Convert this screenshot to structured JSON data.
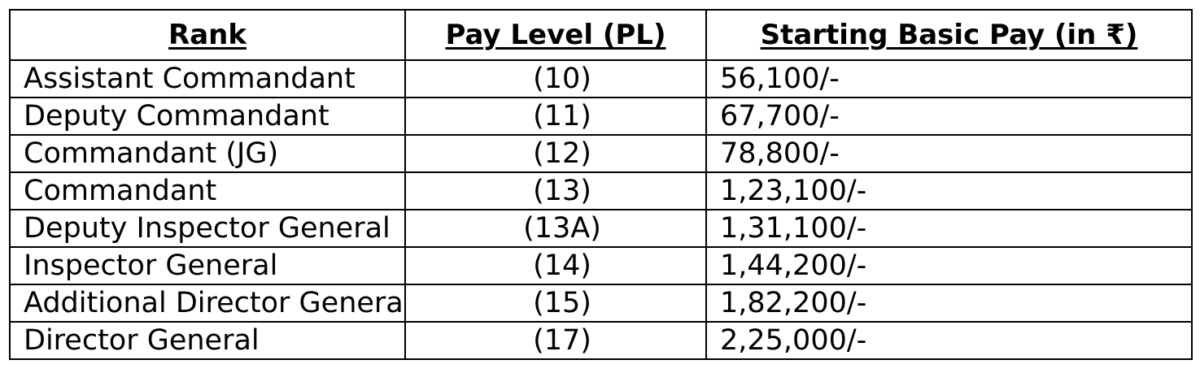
{
  "table": {
    "headers": {
      "rank": "Rank",
      "pay_level": "Pay Level (PL)",
      "starting_pay": "Starting Basic Pay (in ₹)"
    },
    "rows": [
      {
        "rank": "Assistant Commandant",
        "pay_level": "(10)",
        "starting_pay": "56,100/-"
      },
      {
        "rank": "Deputy Commandant",
        "pay_level": "(11)",
        "starting_pay": "67,700/-"
      },
      {
        "rank": "Commandant (JG)",
        "pay_level": "(12)",
        "starting_pay": "78,800/-"
      },
      {
        "rank": "Commandant",
        "pay_level": "(13)",
        "starting_pay": "1,23,100/-"
      },
      {
        "rank": "Deputy Inspector General",
        "pay_level": "(13A)",
        "starting_pay": "1,31,100/-"
      },
      {
        "rank": "Inspector General",
        "pay_level": "(14)",
        "starting_pay": "1,44,200/-"
      },
      {
        "rank": "Additional Director General",
        "pay_level": "(15)",
        "starting_pay": "1,82,200/-"
      },
      {
        "rank": "Director General",
        "pay_level": "(17)",
        "starting_pay": "2,25,000/-"
      }
    ]
  }
}
